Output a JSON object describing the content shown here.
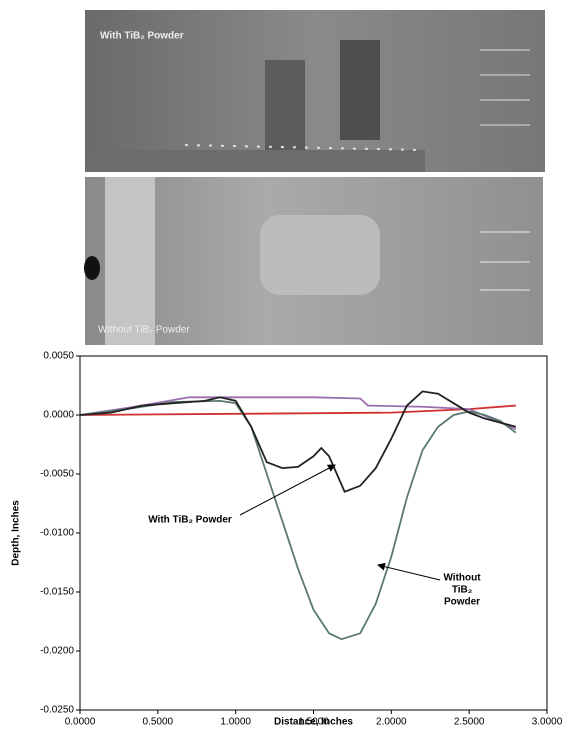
{
  "photos": [
    {
      "label": "With TiB₂ Powder"
    },
    {
      "label": "Without TiB₂ Powder"
    }
  ],
  "chart_data": {
    "type": "line",
    "xlabel": "Distance, Inches",
    "ylabel": "Depth, Inches",
    "xlim": [
      0,
      3
    ],
    "ylim": [
      -0.025,
      0.005
    ],
    "xticks": [
      {
        "value": 0,
        "label": "0.0000"
      },
      {
        "value": 0.5,
        "label": "0.5000"
      },
      {
        "value": 1,
        "label": "1.0000"
      },
      {
        "value": 1.5,
        "label": "1.5000"
      },
      {
        "value": 2,
        "label": "2.0000"
      },
      {
        "value": 2.5,
        "label": "2.5000"
      },
      {
        "value": 3,
        "label": "3.0000"
      }
    ],
    "yticks": [
      {
        "value": 0.005,
        "label": "0.0050"
      },
      {
        "value": 0,
        "label": "0.0000"
      },
      {
        "value": -0.005,
        "label": "-0.0050"
      },
      {
        "value": -0.01,
        "label": "-0.0100"
      },
      {
        "value": -0.015,
        "label": "-0.0150"
      },
      {
        "value": -0.02,
        "label": "-0.0200"
      },
      {
        "value": -0.025,
        "label": "-0.0250"
      }
    ],
    "series": [
      {
        "color": "#d03030",
        "x": [
          0,
          1,
          2,
          2.5,
          2.8
        ],
        "values": [
          0,
          0.0001,
          0.0002,
          0.0005,
          0.0008
        ]
      },
      {
        "color": "#9a6fb0",
        "x": [
          0,
          0.4,
          0.7,
          1,
          1.5,
          1.8,
          1.85,
          2.2,
          2.5,
          2.8
        ],
        "values": [
          0,
          0.0008,
          0.0015,
          0.0015,
          0.0015,
          0.0014,
          0.0008,
          0.0007,
          0.0005,
          -0.0012
        ]
      },
      {
        "color": "#5a7a70",
        "x": [
          0,
          0.3,
          0.6,
          0.9,
          1,
          1.1,
          1.2,
          1.3,
          1.4,
          1.5,
          1.6,
          1.68,
          1.8,
          1.9,
          2,
          2.1,
          2.2,
          2.3,
          2.4,
          2.5,
          2.6,
          2.7,
          2.8
        ],
        "values": [
          0,
          0.0005,
          0.0011,
          0.0012,
          0.001,
          -0.001,
          -0.005,
          -0.009,
          -0.013,
          -0.0165,
          -0.0185,
          -0.019,
          -0.0185,
          -0.016,
          -0.012,
          -0.007,
          -0.003,
          -0.001,
          0,
          0.0003,
          0,
          -0.0005,
          -0.0015
        ]
      },
      {
        "color": "#222222",
        "x": [
          0,
          0.2,
          0.4,
          0.6,
          0.8,
          0.9,
          1,
          1.1,
          1.2,
          1.3,
          1.4,
          1.5,
          1.55,
          1.6,
          1.7,
          1.8,
          1.9,
          2,
          2.1,
          2.2,
          2.3,
          2.4,
          2.5,
          2.6,
          2.8
        ],
        "values": [
          0,
          0.0002,
          0.0008,
          0.001,
          0.0012,
          0.0015,
          0.0012,
          -0.001,
          -0.004,
          -0.0045,
          -0.0044,
          -0.0035,
          -0.0028,
          -0.0035,
          -0.0065,
          -0.006,
          -0.0045,
          -0.002,
          0.0008,
          0.002,
          0.0018,
          0.001,
          0.0002,
          -0.0003,
          -0.001
        ]
      }
    ],
    "annotations": [
      {
        "text": [
          "With TiB₂ Powder"
        ]
      },
      {
        "text": [
          "Without",
          "TiB₂",
          "Powder"
        ]
      }
    ]
  }
}
